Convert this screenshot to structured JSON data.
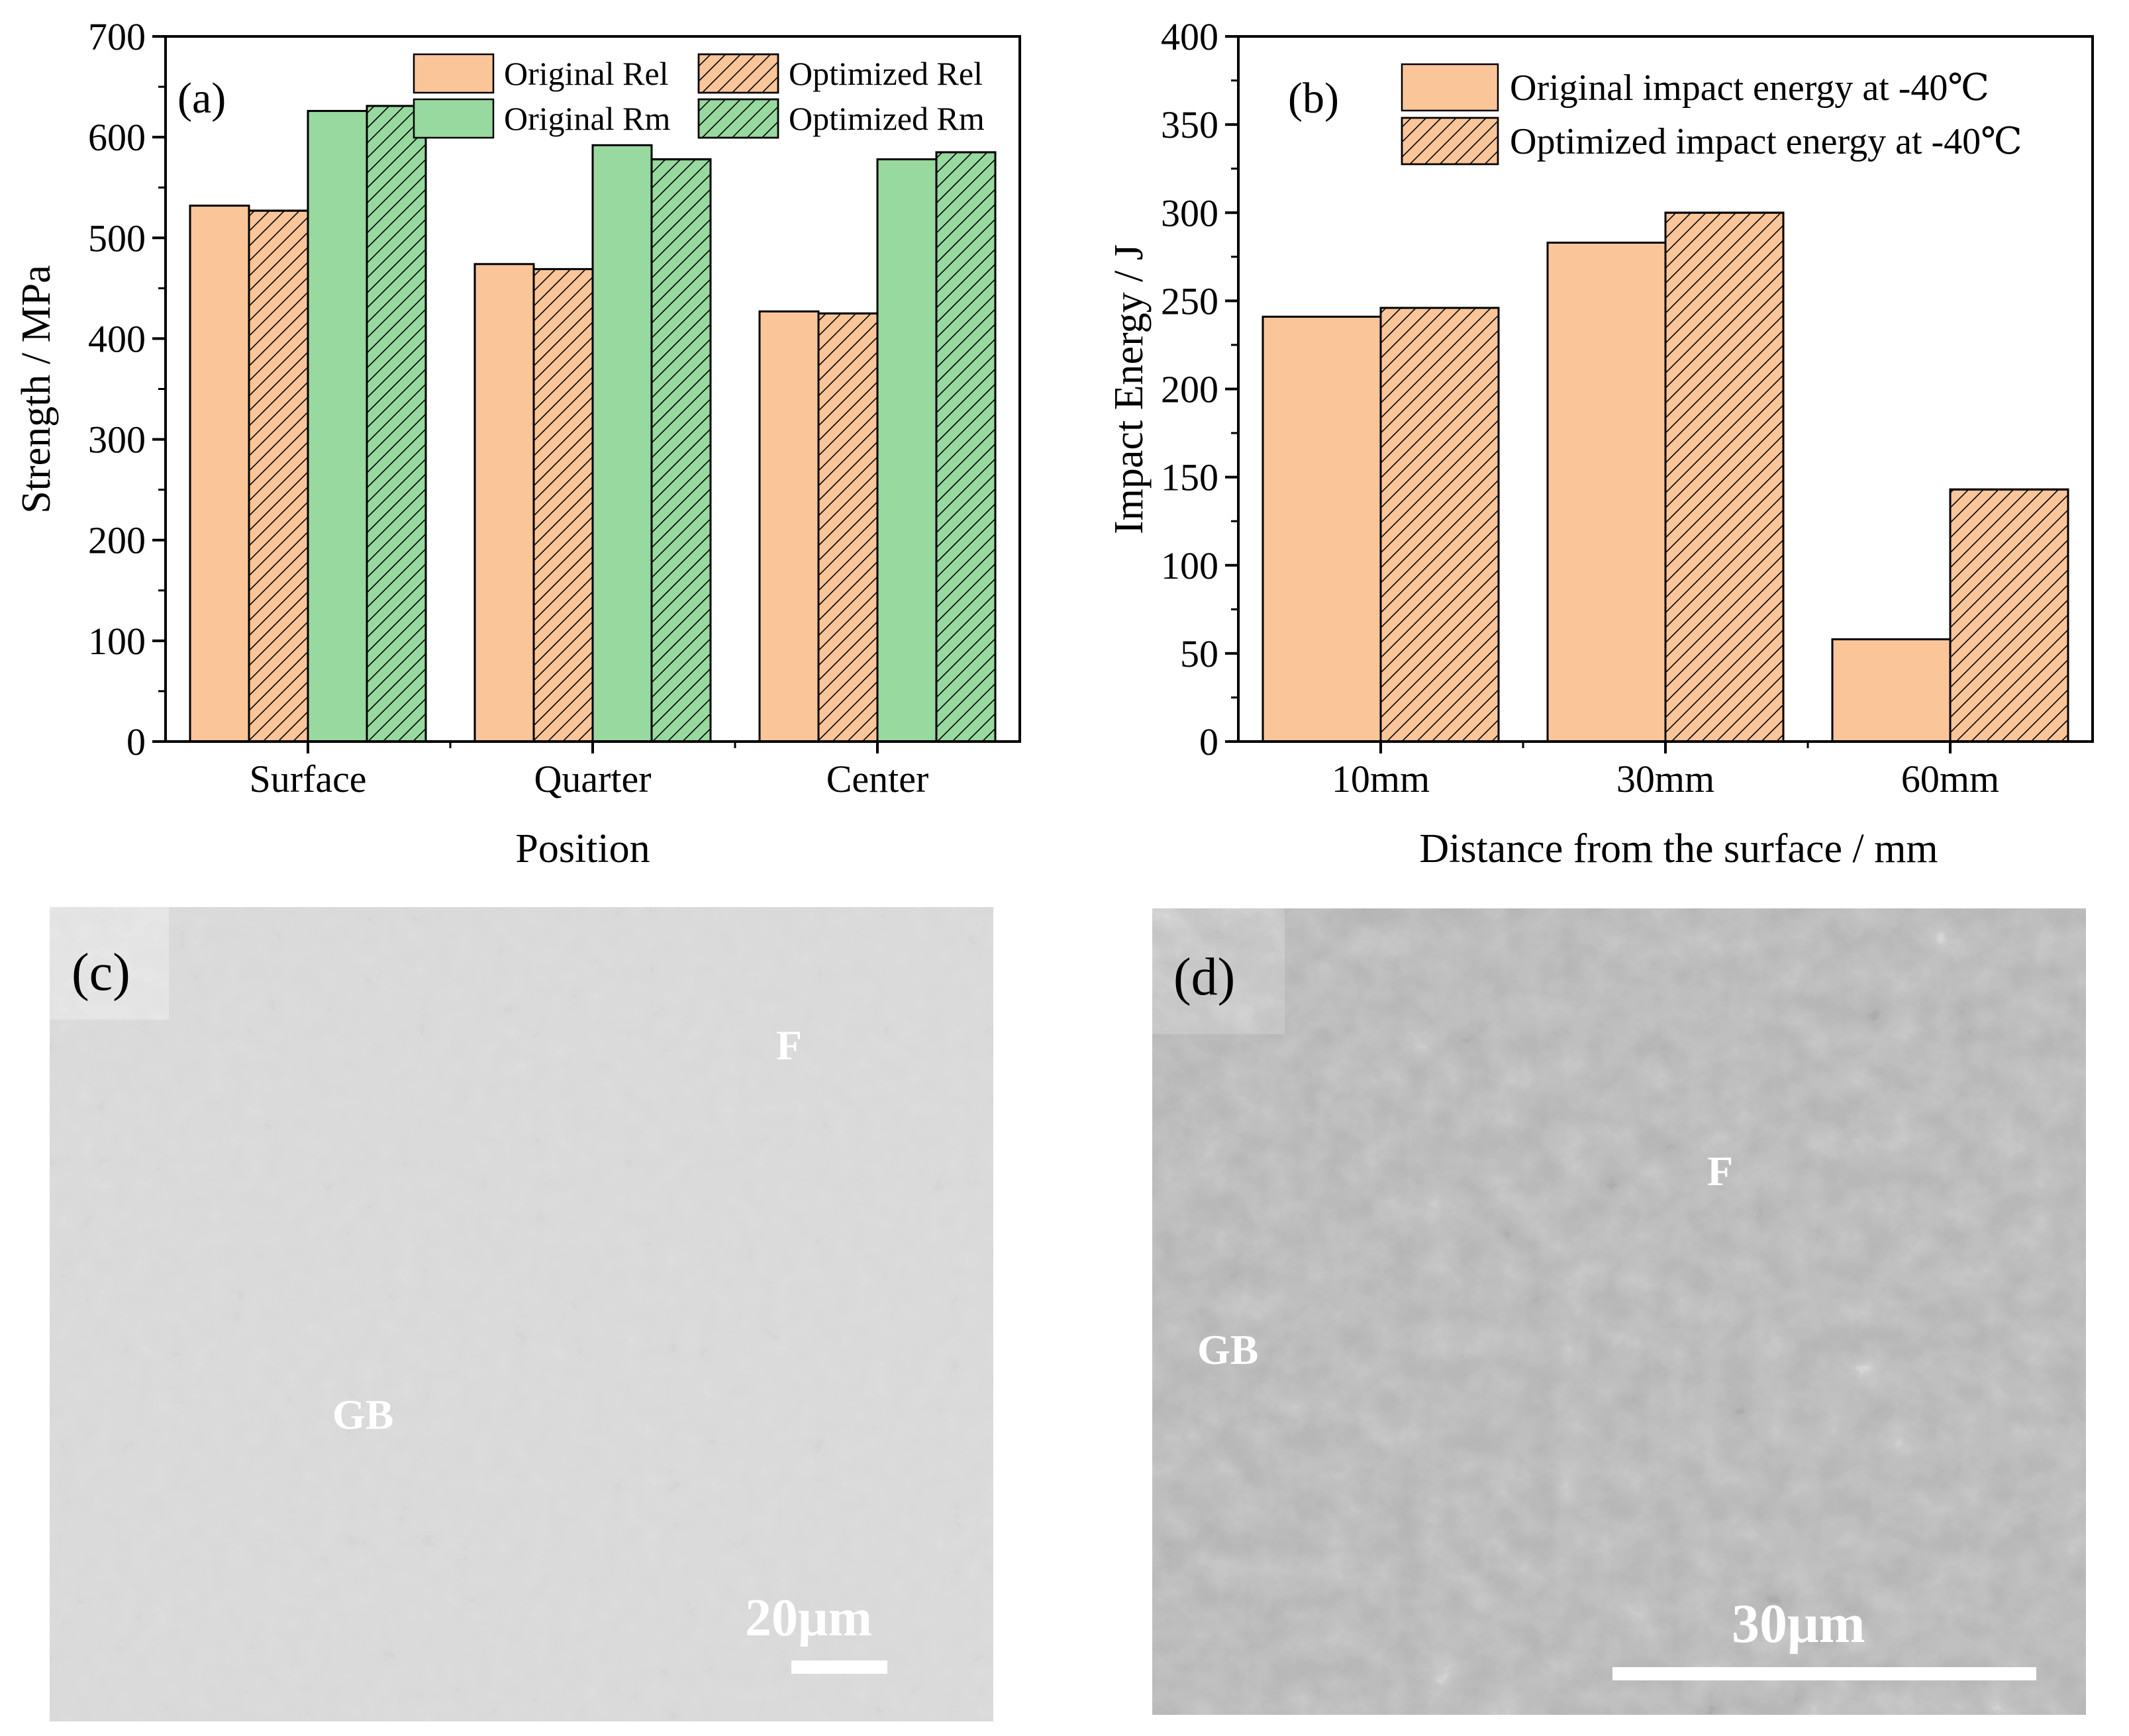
{
  "colors": {
    "orange": "#fbc59a",
    "green": "#98d9a0",
    "hatch_stroke": "#000000",
    "frame": "#000000",
    "micrograph_c_bg": "#b8b8b8",
    "micrograph_d_bg": "#888888"
  },
  "chart_data": [
    {
      "type": "bar",
      "panel_label": "(a)",
      "categories": [
        "Surface",
        "Quarter",
        "Center"
      ],
      "xlabel": "Position",
      "ylabel": "Strength / MPa",
      "ylim": [
        0,
        700
      ],
      "yticks": [
        0,
        100,
        200,
        300,
        400,
        500,
        600,
        700
      ],
      "legend_placement": "top-right",
      "series": [
        {
          "name": "Original Rel",
          "values": [
            532,
            474,
            427
          ],
          "color": "orange",
          "hatched": false
        },
        {
          "name": "Optimized Rel",
          "values": [
            527,
            469,
            425
          ],
          "color": "orange",
          "hatched": true
        },
        {
          "name": "Original Rm",
          "values": [
            626,
            592,
            578
          ],
          "color": "green",
          "hatched": false
        },
        {
          "name": "Optimized Rm",
          "values": [
            631,
            578,
            585
          ],
          "color": "green",
          "hatched": true
        }
      ]
    },
    {
      "type": "bar",
      "panel_label": "(b)",
      "categories": [
        "10mm",
        "30mm",
        "60mm"
      ],
      "xlabel": "Distance from the surface / mm",
      "ylabel": "Impact Energy / J",
      "ylim": [
        0,
        400
      ],
      "yticks": [
        0,
        50,
        100,
        150,
        200,
        250,
        300,
        350,
        400
      ],
      "legend_placement": "top-right",
      "series": [
        {
          "name": "Original impact energy at -40℃",
          "values": [
            241,
            283,
            58
          ],
          "color": "orange",
          "hatched": false
        },
        {
          "name": "Optimized impact energy at -40℃",
          "values": [
            246,
            300,
            143
          ],
          "color": "orange",
          "hatched": true
        }
      ]
    }
  ],
  "micrographs": {
    "c": {
      "panel_label": "(c)",
      "label_f": "F",
      "label_gb": "GB",
      "scale_text": "20μm"
    },
    "d": {
      "panel_label": "(d)",
      "label_f": "F",
      "label_gb": "GB",
      "scale_text": "30μm"
    }
  }
}
